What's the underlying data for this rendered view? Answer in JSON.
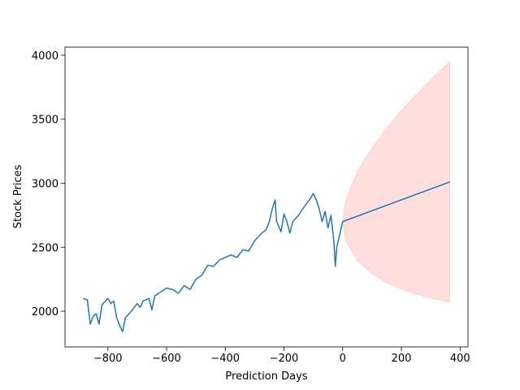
{
  "chart_data": {
    "type": "line",
    "xlabel": "Prediction Days",
    "ylabel": "Stock Prices",
    "xlim": [
      -946,
      427
    ],
    "ylim": [
      1721,
      4063
    ],
    "xticks": [
      {
        "value": -800,
        "label": "−800"
      },
      {
        "value": -600,
        "label": "−600"
      },
      {
        "value": -400,
        "label": "−400"
      },
      {
        "value": -200,
        "label": "−200"
      },
      0,
      200,
      400
    ],
    "yticks": [
      2000,
      2500,
      3000,
      3500,
      4000
    ],
    "series": [
      {
        "color": "#1f77b4",
        "x": [
          -884,
          -870,
          -860,
          -850,
          -840,
          -830,
          -820,
          -800,
          -790,
          -780,
          -770,
          -760,
          -750,
          -740,
          -720,
          -700,
          -690,
          -680,
          -660,
          -650,
          -640,
          -620,
          -600,
          -580,
          -560,
          -540,
          -520,
          -500,
          -480,
          -460,
          -440,
          -420,
          -400,
          -380,
          -360,
          -340,
          -320,
          -300,
          -280,
          -260,
          -250,
          -240,
          -230,
          -225,
          -210,
          -200,
          -190,
          -180,
          -170,
          -150,
          -130,
          -110,
          -100,
          -90,
          -80,
          -70,
          -60,
          -50,
          -40,
          -30,
          -25,
          -20,
          -10,
          0
        ],
        "values": [
          2100,
          2090,
          1900,
          1960,
          1980,
          1900,
          2050,
          2100,
          2060,
          2080,
          1950,
          1890,
          1840,
          1950,
          2000,
          2060,
          2030,
          2080,
          2100,
          2010,
          2120,
          2150,
          2180,
          2170,
          2140,
          2200,
          2170,
          2250,
          2280,
          2360,
          2350,
          2400,
          2420,
          2440,
          2420,
          2480,
          2470,
          2550,
          2600,
          2640,
          2700,
          2800,
          2870,
          2700,
          2620,
          2760,
          2700,
          2610,
          2700,
          2750,
          2820,
          2880,
          2920,
          2870,
          2800,
          2700,
          2780,
          2650,
          2750,
          2550,
          2350,
          2500,
          2600,
          2700
        ]
      },
      {
        "color": "#1f77b4",
        "x": [
          0,
          365
        ],
        "values": [
          2700,
          3010
        ]
      }
    ],
    "band": {
      "color": "#ff0000",
      "alpha": 0.13,
      "x": [
        0,
        10,
        50,
        100,
        150,
        200,
        250,
        300,
        365
      ],
      "upper": [
        2700,
        2864,
        3090,
        3277,
        3430,
        3566,
        3690,
        3807,
        3950
      ],
      "lower": [
        2700,
        2552,
        2394,
        2293,
        2224,
        2174,
        2134,
        2103,
        2070
      ]
    }
  }
}
